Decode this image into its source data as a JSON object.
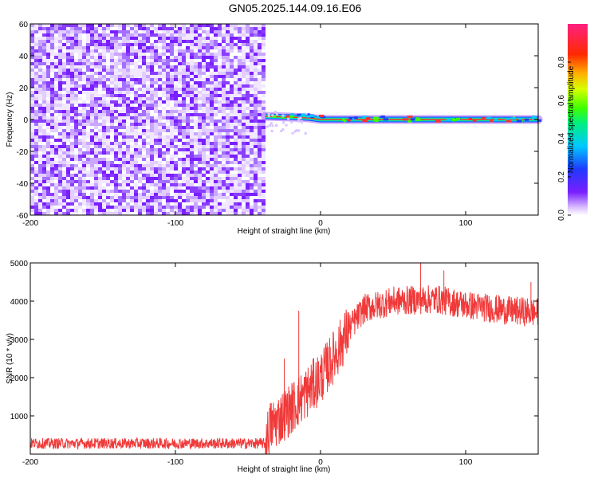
{
  "title": "GN05.2025.144.09.16.E06",
  "colors": {
    "spectrogram_noise": "#7a1fff",
    "signal_core": "#ff3030",
    "snr_line": "#f03a3a",
    "background": "#ffffff"
  },
  "chart_data": [
    {
      "type": "heatmap",
      "xlabel": "Height of straight line (km)",
      "ylabel": "Frequency (Hz)",
      "xlim": [
        -200,
        150
      ],
      "ylim": [
        -60,
        60
      ],
      "x_ticks": [
        -200,
        -100,
        0,
        100
      ],
      "y_ticks": [
        -60,
        -40,
        -20,
        0,
        20,
        40,
        60
      ],
      "noise_region_x": [
        -200,
        -38
      ],
      "signal_band": {
        "x_start": -38,
        "x_end": 150,
        "frequency_points": [
          {
            "x": -38,
            "y": 2
          },
          {
            "x": -20,
            "y": 1.5
          },
          {
            "x": -8,
            "y": 1
          },
          {
            "x": 0,
            "y": 0
          },
          {
            "x": 150,
            "y": 0
          }
        ],
        "amplitude": 1.0
      },
      "colorbar": {
        "label": "Normalized spectral amplitude",
        "range": [
          0,
          1
        ],
        "ticks": [
          0.0,
          0.2,
          0.4,
          0.6,
          0.8
        ]
      },
      "grid": false
    },
    {
      "type": "line",
      "xlabel": "Height of straight line (km)",
      "ylabel": "SNR (10 * v/v)",
      "xlim": [
        -200,
        150
      ],
      "ylim": [
        0,
        5000
      ],
      "x_ticks": [
        -200,
        -100,
        0,
        100
      ],
      "y_ticks": [
        1000,
        2000,
        3000,
        4000,
        5000
      ],
      "series": [
        {
          "values_envelope": [
            {
              "x": -200,
              "y": 280
            },
            {
              "x": -38,
              "y": 280
            },
            {
              "x": -35,
              "y": 700
            },
            {
              "x": -20,
              "y": 1200
            },
            {
              "x": -10,
              "y": 1600
            },
            {
              "x": 0,
              "y": 2000
            },
            {
              "x": 10,
              "y": 2600
            },
            {
              "x": 20,
              "y": 3300
            },
            {
              "x": 30,
              "y": 3800
            },
            {
              "x": 50,
              "y": 4000
            },
            {
              "x": 80,
              "y": 4050
            },
            {
              "x": 100,
              "y": 3900
            },
            {
              "x": 130,
              "y": 3750
            },
            {
              "x": 150,
              "y": 3700
            }
          ],
          "spikes": [
            {
              "x": -15,
              "y": 3750
            },
            {
              "x": -25,
              "y": 2500
            },
            {
              "x": 69,
              "y": 5000
            },
            {
              "x": 85,
              "y": 4800
            },
            {
              "x": 145,
              "y": 4500
            }
          ]
        }
      ],
      "grid": false
    }
  ]
}
